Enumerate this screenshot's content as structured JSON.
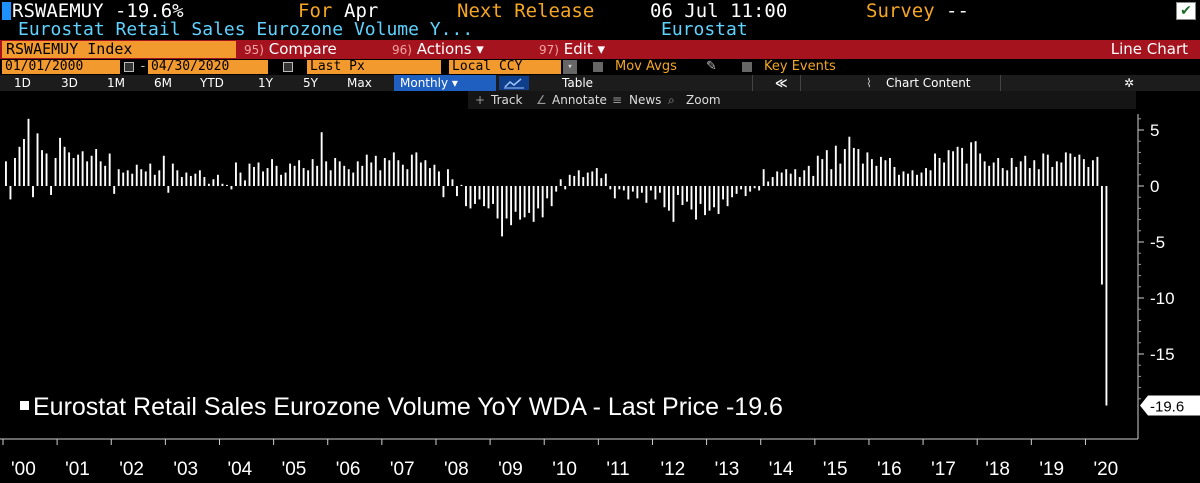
{
  "header": {
    "ticker": "RSWAEMUY -19.6%",
    "for_label": "For",
    "for_value": "Apr",
    "next_release_label": "Next Release",
    "next_release_value": "06 Jul 11:00",
    "survey_label": "Survey",
    "survey_value": "--",
    "description": "Eurostat Retail Sales Eurozone Volume Y...",
    "source": "Eurostat"
  },
  "command_bar": {
    "index_field": "RSWAEMUY Index",
    "menus": [
      {
        "num": "95)",
        "label": "Compare"
      },
      {
        "num": "96)",
        "label": "Actions ▾"
      },
      {
        "num": "97)",
        "label": "Edit ▾"
      }
    ],
    "chart_type": "Line Chart"
  },
  "controls": {
    "start_date": "01/01/2000",
    "end_date": "04/30/2020",
    "field": "Last Px",
    "currency": "Local CCY",
    "mov_avgs": "Mov Avgs",
    "key_events": "Key Events"
  },
  "periods": [
    "1D",
    "3D",
    "1M",
    "6M",
    "YTD",
    "1Y",
    "5Y",
    "Max"
  ],
  "frequency": "Monthly ▾",
  "table_label": "Table",
  "chart_content_label": "Chart Content",
  "tools": [
    {
      "icon": "+",
      "label": "Track"
    },
    {
      "icon": "∠",
      "label": "Annotate"
    },
    {
      "icon": "≡",
      "label": "News"
    },
    {
      "icon": "⌕",
      "label": "Zoom"
    }
  ],
  "legend": {
    "label": "Eurostat Retail Sales Eurozone Volume YoY WDA - Last Price",
    "value": "-19.6"
  },
  "colors": {
    "background": "#000000",
    "bars": "#ffffff",
    "accent_orange": "#f5a623",
    "accent_cyan": "#5fd3ff",
    "command_red": "#a4131e"
  },
  "chart_data": {
    "type": "bar",
    "title": "Eurostat Retail Sales Eurozone Volume YoY WDA",
    "xlabel": "",
    "ylabel": "",
    "ylim": [
      -20,
      8
    ],
    "yticks": [
      5,
      0,
      -5,
      -10,
      -15
    ],
    "last_value_label": "-19.6",
    "x_labels": [
      "'00",
      "'01",
      "'02",
      "'03",
      "'04",
      "'05",
      "'06",
      "'07",
      "'08",
      "'09",
      "'10",
      "'11",
      "'12",
      "'13",
      "'14",
      "'15",
      "'16",
      "'17",
      "'18",
      "'19",
      "'20"
    ],
    "start": "2000-01",
    "frequency": "monthly",
    "values": [
      2.2,
      -1.2,
      2.5,
      3.5,
      4.2,
      6.0,
      -1.0,
      4.7,
      3.2,
      2.9,
      -0.8,
      2.5,
      4.3,
      3.5,
      3.0,
      2.5,
      2.8,
      3.1,
      2.2,
      2.7,
      3.3,
      2.2,
      1.8,
      2.9,
      -0.7,
      1.5,
      1.2,
      1.4,
      1.1,
      1.9,
      1.5,
      1.3,
      2.0,
      1.0,
      1.4,
      2.7,
      -0.6,
      2.0,
      1.4,
      0.8,
      1.2,
      0.9,
      1.1,
      1.4,
      0.8,
      0.2,
      0.6,
      1.0,
      0.2,
      0.1,
      -0.3,
      2.1,
      1.2,
      0.5,
      2.0,
      1.7,
      2.1,
      1.3,
      1.6,
      2.4,
      1.8,
      1.0,
      1.2,
      2.0,
      1.8,
      2.3,
      1.6,
      1.4,
      2.4,
      1.8,
      4.8,
      2.2,
      1.4,
      2.5,
      2.2,
      1.8,
      1.5,
      1.2,
      2.2,
      1.8,
      2.8,
      2.1,
      2.7,
      1.4,
      2.5,
      2.3,
      3.0,
      2.3,
      1.9,
      1.5,
      2.8,
      3.0,
      2.1,
      2.3,
      1.6,
      1.9,
      1.3,
      -1.0,
      1.5,
      0.6,
      -0.9,
      0.1,
      -1.8,
      -2.0,
      -1.6,
      -1.2,
      -1.8,
      -2.0,
      -1.6,
      -2.9,
      -4.5,
      -2.9,
      -3.5,
      -2.3,
      -3.0,
      -2.8,
      -2.4,
      -3.2,
      -2.0,
      -2.8,
      -1.1,
      -1.8,
      -0.5,
      0.6,
      -0.3,
      1.0,
      0.9,
      1.4,
      0.8,
      1.2,
      1.3,
      1.6,
      0.7,
      1.1,
      -0.3,
      -1.1,
      -0.3,
      -0.4,
      -1.2,
      -0.5,
      -1.1,
      -0.6,
      -1.5,
      -0.4,
      -1.2,
      -0.6,
      -1.9,
      -2.2,
      -3.2,
      -0.8,
      -1.7,
      -1.4,
      -2.1,
      -3.0,
      -1.6,
      -2.6,
      -2.2,
      -1.9,
      -2.5,
      -1.2,
      -1.8,
      -1.0,
      -0.7,
      -0.3,
      -0.9,
      -0.5,
      -0.2,
      -0.4,
      1.5,
      0.4,
      0.8,
      1.3,
      1.2,
      1.5,
      1.1,
      1.5,
      0.8,
      1.4,
      1.8,
      0.9,
      2.7,
      2.4,
      3.2,
      1.5,
      3.6,
      2.0,
      3.3,
      4.4,
      3.4,
      3.3,
      2.0,
      3.0,
      2.4,
      1.8,
      2.6,
      2.3,
      2.5,
      1.7,
      1.0,
      1.3,
      1.1,
      1.4,
      1.0,
      1.2,
      1.6,
      1.4,
      2.9,
      2.5,
      2.1,
      3.2,
      3.1,
      3.5,
      3.4,
      2.0,
      3.9,
      4.0,
      2.9,
      2.2,
      1.8,
      2.1,
      2.5,
      1.6,
      1.4,
      2.5,
      1.7,
      2.2,
      2.7,
      1.6,
      2.3,
      1.5,
      2.9,
      2.8,
      1.7,
      2.2,
      2.1,
      3.0,
      2.9,
      2.6,
      2.8,
      2.4,
      1.7,
      2.3,
      2.6,
      -8.8,
      -19.6
    ]
  }
}
